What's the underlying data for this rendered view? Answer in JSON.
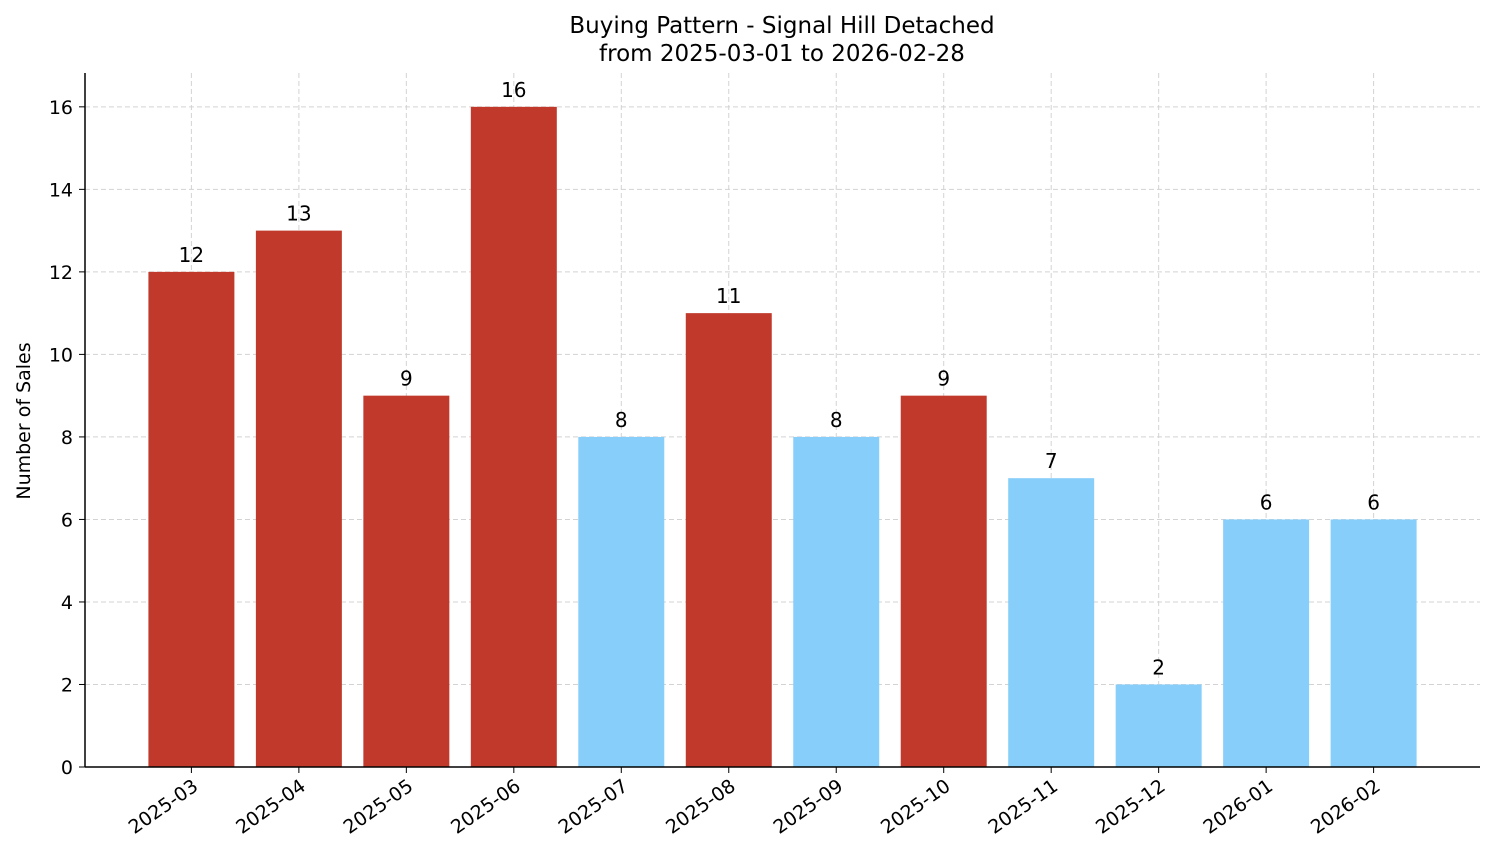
{
  "chart_data": {
    "type": "bar",
    "title": "Buying Pattern - Signal Hill Detached",
    "subtitle": "from 2025-03-01 to 2026-02-28",
    "y_label": "Number of Sales",
    "categories": [
      "2025-03",
      "2025-04",
      "2025-05",
      "2025-06",
      "2025-07",
      "2025-08",
      "2025-09",
      "2025-10",
      "2025-11",
      "2025-12",
      "2026-01",
      "2026-02"
    ],
    "values": [
      12,
      13,
      9,
      16,
      8,
      11,
      8,
      9,
      7,
      2,
      6,
      6
    ],
    "colors": [
      "#c0392b",
      "#c0392b",
      "#c0392b",
      "#c0392b",
      "#87cefa",
      "#c0392b",
      "#87cefa",
      "#c0392b",
      "#87cefa",
      "#87cefa",
      "#87cefa",
      "#87cefa"
    ],
    "ylim": [
      0,
      16.82
    ],
    "yticks": [
      0,
      2,
      4,
      6,
      8,
      10,
      12,
      14,
      16
    ],
    "grid": true
  }
}
